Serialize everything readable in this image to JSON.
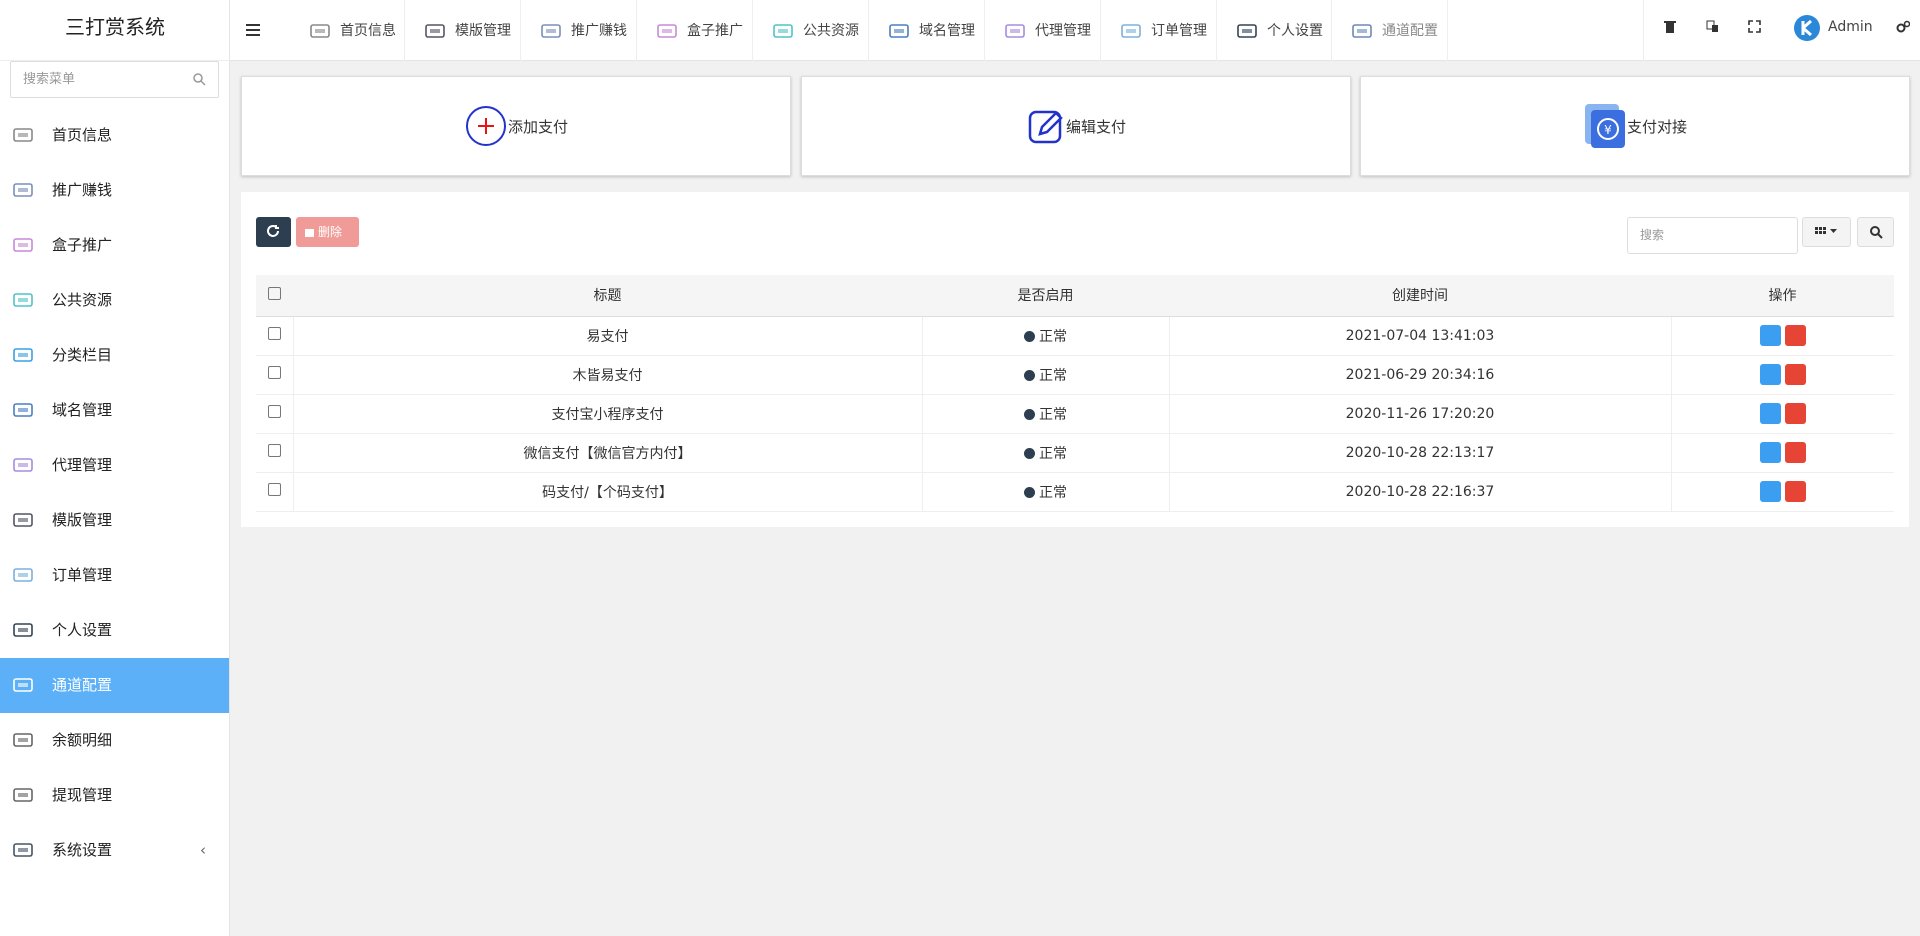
{
  "brand": "三打赏系统",
  "sidebar": {
    "search_placeholder": "搜索菜单",
    "items": [
      "首页信息",
      "推广赚钱",
      "盒子推广",
      "公共资源",
      "分类栏目",
      "域名管理",
      "代理管理",
      "模版管理",
      "订单管理",
      "个人设置",
      "通道配置",
      "余额明细",
      "提现管理",
      "系统设置"
    ]
  },
  "topnav": {
    "tabs": [
      "首页信息",
      "模版管理",
      "推广赚钱",
      "盒子推广",
      "公共资源",
      "域名管理",
      "代理管理",
      "订单管理",
      "个人设置",
      "通道配置"
    ],
    "user": "Admin"
  },
  "cards": [
    "添加支付",
    "编辑支付",
    "支付对接"
  ],
  "toolbar": {
    "delete": "删除",
    "search_placeholder": "搜索"
  },
  "table": {
    "headers": [
      "标题",
      "是否启用",
      "创建时间",
      "操作"
    ],
    "rows": [
      [
        "易支付",
        "正常",
        "2021-07-04 13:41:03"
      ],
      [
        "木皆易支付",
        "正常",
        "2021-06-29 20:34:16"
      ],
      [
        "支付宝小程序支付",
        "正常",
        "2020-11-26 17:20:20"
      ],
      [
        "微信支付【微信官方内付】",
        "正常",
        "2020-10-28 22:13:17"
      ],
      [
        "码支付/【个码支付】",
        "正常",
        "2020-10-28 22:16:37"
      ]
    ]
  }
}
